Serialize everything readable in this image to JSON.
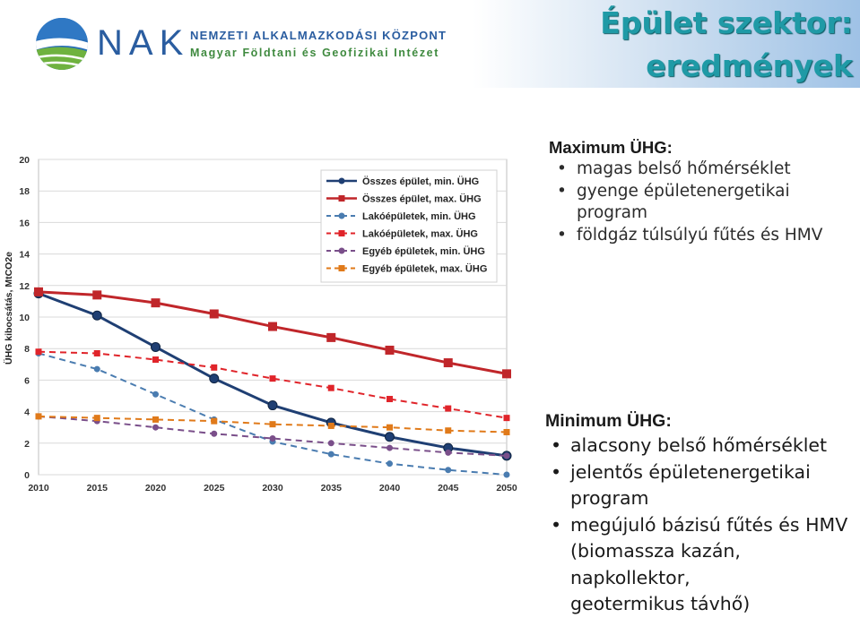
{
  "header": {
    "logo_text": "NAK",
    "org_line1": "NEMZETI ALKALMAZKODÁSI KÖZPONT",
    "org_line2": "Magyar Földtani és Geofizikai Intézet",
    "title_line1": "Épület szektor:",
    "title_line2": "eredmények",
    "colors": {
      "brand_blue": "#2a5da0",
      "brand_green": "#3f8a3f",
      "title_teal": "#1f9aa6"
    },
    "icon": "nak-globe-logo-icon"
  },
  "max_panel": {
    "heading": "Maximum ÜHG:",
    "bullets": [
      "magas belső hőmérséklet",
      "gyenge épületenergetikai",
      "program",
      "földgáz túlsúlyú fűtés és HMV"
    ]
  },
  "min_panel": {
    "heading": "Minimum ÜHG:",
    "bullets": [
      "alacsony belső hőmérséklet",
      "jelentős épületenergetikai",
      "program",
      "megújuló bázisú fűtés és HMV",
      "(biomassza kazán, napkollektor,",
      "geotermikus távhő)"
    ]
  },
  "chart_data": {
    "type": "line",
    "title": "",
    "xlabel": "",
    "ylabel": "ÜHG kibocsátás, MtCO2e",
    "x": [
      2010,
      2015,
      2020,
      2025,
      2030,
      2035,
      2040,
      2045,
      2050
    ],
    "x_ticks": [
      "2010",
      "2015",
      "2020",
      "2025",
      "2030",
      "2035",
      "2040",
      "2045",
      "2050"
    ],
    "y_ticks": [
      "0",
      "2",
      "4",
      "6",
      "8",
      "10",
      "12",
      "14",
      "16",
      "18",
      "20"
    ],
    "ylim": [
      0,
      20
    ],
    "grid": true,
    "legend_position": "top-right",
    "series": [
      {
        "name": "Összes épület, min. ÜHG",
        "color": "#1f3f73",
        "style": "solid",
        "marker": "circle",
        "values": [
          11.5,
          10.1,
          8.1,
          6.1,
          4.4,
          3.3,
          2.4,
          1.7,
          1.2
        ]
      },
      {
        "name": "Összes épület, max. ÜHG",
        "color": "#c0262a",
        "style": "solid",
        "marker": "square",
        "values": [
          11.6,
          11.4,
          10.9,
          10.2,
          9.4,
          8.7,
          7.9,
          7.1,
          6.4
        ]
      },
      {
        "name": "Lakóépületek, min. ÜHG",
        "color": "#4a7cb0",
        "style": "dashed",
        "marker": "circle",
        "values": [
          7.7,
          6.7,
          5.1,
          3.5,
          2.1,
          1.3,
          0.7,
          0.3,
          0.0
        ]
      },
      {
        "name": "Lakóépületek, max. ÜHG",
        "color": "#e0242a",
        "style": "dashed",
        "marker": "square",
        "values": [
          7.8,
          7.7,
          7.3,
          6.8,
          6.1,
          5.5,
          4.8,
          4.2,
          3.6
        ]
      },
      {
        "name": "Egyéb épületek, min. ÜHG",
        "color": "#7a4f8a",
        "style": "dashed",
        "marker": "circle",
        "values": [
          3.7,
          3.4,
          3.0,
          2.6,
          2.3,
          2.0,
          1.7,
          1.4,
          1.2
        ]
      },
      {
        "name": "Egyéb épületek, max. ÜHG",
        "color": "#e07a1a",
        "style": "dashed",
        "marker": "square",
        "values": [
          3.7,
          3.6,
          3.5,
          3.4,
          3.2,
          3.1,
          3.0,
          2.8,
          2.7
        ]
      }
    ]
  }
}
